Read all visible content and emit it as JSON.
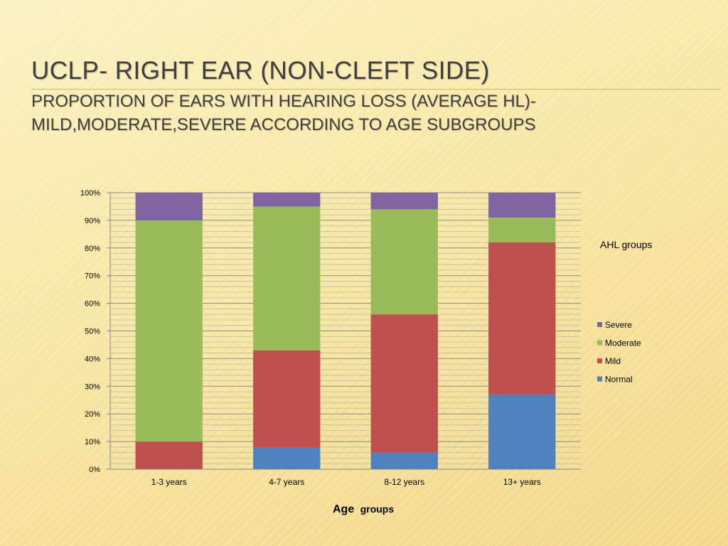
{
  "slide": {
    "title": "UCLP- RIGHT EAR (NON-CLEFT SIDE)",
    "subtitle_line1": "PROPORTION OF EARS WITH HEARING LOSS (AVERAGE HL)-",
    "subtitle_line2": "MILD,MODERATE,SEVERE ACCORDING TO AGE SUBGROUPS"
  },
  "chart_data": {
    "type": "bar",
    "stacked": "percent",
    "categories": [
      "1-3 years",
      "4-7 years",
      "8-12 years",
      "13+ years"
    ],
    "series": [
      {
        "name": "Normal",
        "color": "#4f81bd",
        "values": [
          0,
          8,
          6,
          27
        ]
      },
      {
        "name": "Mild",
        "color": "#c0504d",
        "values": [
          10,
          35,
          50,
          55
        ]
      },
      {
        "name": "Moderate",
        "color": "#9bbb59",
        "values": [
          80,
          52,
          38,
          9
        ]
      },
      {
        "name": "Severe",
        "color": "#8064a2",
        "values": [
          10,
          5,
          6,
          9
        ]
      }
    ],
    "yticks": [
      "0%",
      "10%",
      "20%",
      "30%",
      "40%",
      "50%",
      "60%",
      "70%",
      "80%",
      "90%",
      "100%"
    ],
    "ylim": [
      0,
      100
    ],
    "xlabel_big": "Age",
    "xlabel_small": "groups",
    "legend_title": "AHL groups",
    "legend_position": "right",
    "grid": true
  }
}
